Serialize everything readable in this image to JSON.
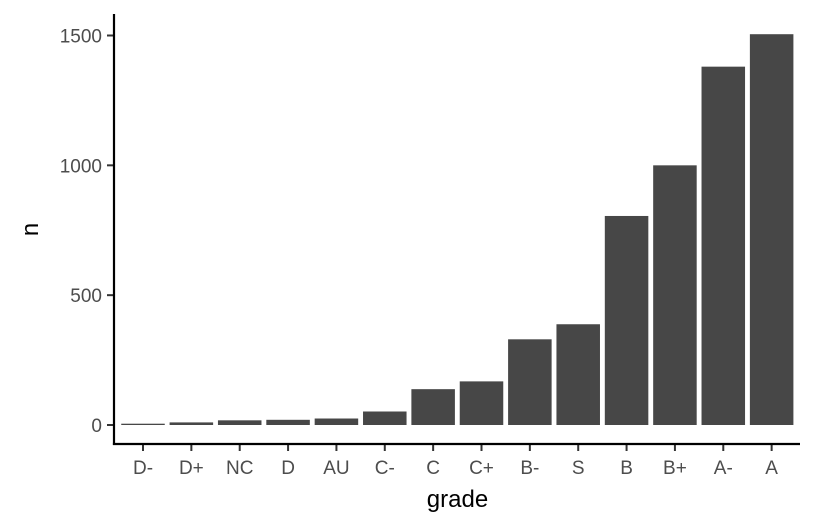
{
  "chart_data": {
    "type": "bar",
    "categories": [
      "D-",
      "D+",
      "NC",
      "D",
      "AU",
      "C-",
      "C",
      "C+",
      "B-",
      "S",
      "B",
      "B+",
      "A-",
      "A"
    ],
    "values": [
      5,
      10,
      18,
      20,
      25,
      52,
      138,
      168,
      330,
      388,
      805,
      1000,
      1380,
      1505
    ],
    "xlabel": "grade",
    "ylabel": "n",
    "ylim": [
      0,
      1500
    ],
    "yticks": [
      0,
      500,
      1000,
      1500
    ],
    "grid": false,
    "bar_color": "#474747",
    "axis_color": "#000000"
  }
}
